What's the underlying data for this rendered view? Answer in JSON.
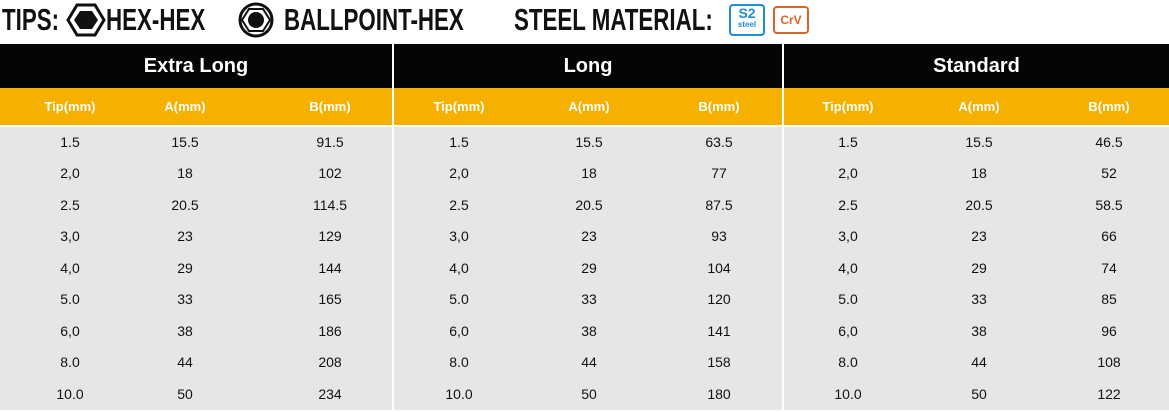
{
  "header": {
    "tips_label": "TIPS:",
    "hex_hex": "HEX-HEX",
    "ballpoint_hex": "BALLPOINT-HEX",
    "steel_label": "STEEL MATERIAL:",
    "badges": {
      "s2": "S2",
      "s2_sub": "steel",
      "crv": "CrV"
    }
  },
  "table": {
    "groups": [
      "Extra Long",
      "Long",
      "Standard"
    ],
    "columns": [
      "Tip(mm)",
      "A(mm)",
      "B(mm)"
    ],
    "rows": [
      [
        "1.5",
        "15.5",
        "91.5",
        "1.5",
        "15.5",
        "63.5",
        "1.5",
        "15.5",
        "46.5"
      ],
      [
        "2,0",
        "18",
        "102",
        "2,0",
        "18",
        "77",
        "2,0",
        "18",
        "52"
      ],
      [
        "2.5",
        "20.5",
        "114.5",
        "2.5",
        "20.5",
        "87.5",
        "2.5",
        "20.5",
        "58.5"
      ],
      [
        "3,0",
        "23",
        "129",
        "3,0",
        "23",
        "93",
        "3,0",
        "23",
        "66"
      ],
      [
        "4,0",
        "29",
        "144",
        "4,0",
        "29",
        "104",
        "4,0",
        "29",
        "74"
      ],
      [
        "5.0",
        "33",
        "165",
        "5.0",
        "33",
        "120",
        "5.0",
        "33",
        "85"
      ],
      [
        "6,0",
        "38",
        "186",
        "6,0",
        "38",
        "141",
        "6,0",
        "38",
        "96"
      ],
      [
        "8.0",
        "44",
        "208",
        "8.0",
        "44",
        "158",
        "8.0",
        "44",
        "108"
      ],
      [
        "10.0",
        "50",
        "234",
        "10.0",
        "50",
        "180",
        "10.0",
        "50",
        "122"
      ]
    ]
  }
}
